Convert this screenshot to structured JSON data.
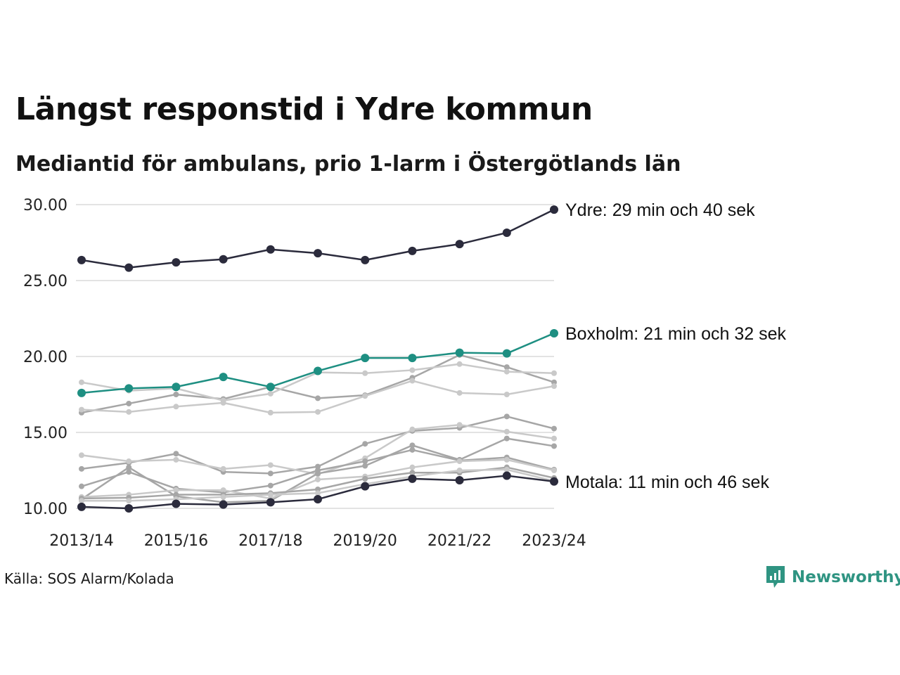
{
  "title": "Längst responstid i Ydre kommun",
  "subtitle": "Mediantid för ambulans, prio 1-larm i Östergötlands län",
  "source": "Källa: SOS Alarm/Kolada",
  "brand": {
    "name": "Newsworthy",
    "color": "#2f9482",
    "icon": "newsworthy-logo-icon"
  },
  "colors": {
    "ydre": "#2b2b3c",
    "boxholm": "#1e8f82",
    "motala": "#2b2b3c",
    "gray_dark": "#a6a6a6",
    "gray_light": "#c9c9c9",
    "grid": "#e3e3e3"
  },
  "chart_data": {
    "type": "line",
    "x": [
      "2013/14",
      "2014/15",
      "2015/16",
      "2016/17",
      "2017/18",
      "2018/19",
      "2019/20",
      "2020/21",
      "2021/22",
      "2022/23",
      "2023/24"
    ],
    "x_tick_labels": [
      "2013/14",
      "2015/16",
      "2017/18",
      "2019/20",
      "2021/22",
      "2023/24"
    ],
    "y_tick_labels": [
      "10.00",
      "15.00",
      "20.00",
      "25.00",
      "30.00"
    ],
    "ylim": [
      10,
      30
    ],
    "grid": "horizontal",
    "highlighted": [
      {
        "name": "Ydre",
        "label": "Ydre: 29 min och 40 sek",
        "color": "#2b2b3c",
        "values": [
          26.35,
          25.85,
          26.2,
          26.4,
          27.05,
          26.8,
          26.35,
          26.95,
          27.4,
          28.15,
          29.67
        ]
      },
      {
        "name": "Boxholm",
        "label": "Boxholm: 21 min och 32 sek",
        "color": "#1e8f82",
        "values": [
          17.6,
          17.9,
          18.0,
          18.65,
          18.0,
          19.05,
          19.9,
          19.9,
          20.25,
          20.2,
          21.53
        ]
      },
      {
        "name": "Motala",
        "label": "Motala: 11 min och 46 sek",
        "color": "#2b2b3c",
        "values": [
          10.1,
          10.0,
          10.3,
          10.25,
          10.4,
          10.6,
          11.45,
          11.95,
          11.85,
          12.15,
          11.77
        ]
      }
    ],
    "background_series": [
      {
        "color": "#a6a6a6",
        "values": [
          16.3,
          16.9,
          17.5,
          17.2,
          18.0,
          17.25,
          17.45,
          18.6,
          20.1,
          19.3,
          18.3
        ]
      },
      {
        "color": "#c9c9c9",
        "values": [
          18.3,
          17.75,
          17.9,
          17.1,
          17.55,
          18.95,
          18.9,
          19.1,
          19.5,
          19.0,
          18.9
        ]
      },
      {
        "color": "#c9c9c9",
        "values": [
          16.5,
          16.35,
          16.7,
          16.95,
          16.3,
          16.35,
          17.4,
          18.4,
          17.6,
          17.5,
          18.05
        ]
      },
      {
        "color": "#a6a6a6",
        "values": [
          12.6,
          13.0,
          13.6,
          12.4,
          12.3,
          12.75,
          14.25,
          15.1,
          15.3,
          16.05,
          15.25
        ]
      },
      {
        "color": "#c9c9c9",
        "values": [
          13.5,
          13.1,
          13.2,
          12.6,
          12.85,
          12.25,
          13.3,
          15.2,
          15.5,
          15.05,
          14.6
        ]
      },
      {
        "color": "#a6a6a6",
        "values": [
          10.6,
          12.7,
          10.8,
          10.4,
          10.5,
          12.3,
          12.8,
          14.15,
          13.2,
          14.6,
          14.1
        ]
      },
      {
        "color": "#a6a6a6",
        "values": [
          11.45,
          12.4,
          11.3,
          11.05,
          11.5,
          12.5,
          13.1,
          13.85,
          13.15,
          13.35,
          12.55
        ]
      },
      {
        "color": "#c9c9c9",
        "values": [
          10.75,
          10.9,
          11.2,
          11.2,
          10.65,
          11.9,
          12.1,
          12.7,
          13.1,
          13.2,
          12.5
        ]
      },
      {
        "color": "#a6a6a6",
        "values": [
          10.65,
          10.7,
          10.9,
          10.9,
          11.0,
          11.25,
          11.95,
          12.35,
          12.35,
          12.7,
          12.0
        ]
      },
      {
        "color": "#c9c9c9",
        "values": [
          10.5,
          10.5,
          10.6,
          10.75,
          10.9,
          11.0,
          11.6,
          12.1,
          12.5,
          12.55,
          11.8
        ]
      }
    ]
  }
}
